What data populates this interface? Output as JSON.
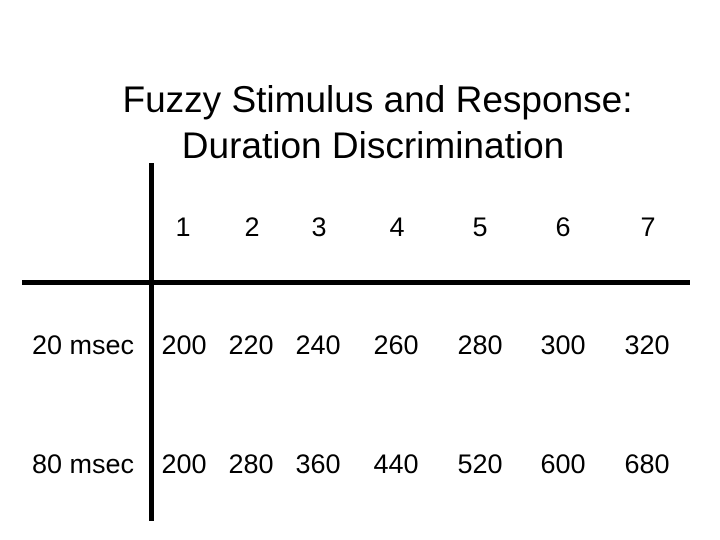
{
  "title": {
    "line1": "Fuzzy Stimulus and Response:",
    "line2": "Duration Discrimination"
  },
  "table": {
    "columns": [
      "1",
      "2",
      "3",
      "4",
      "5",
      "6",
      "7"
    ],
    "rows": [
      {
        "label": "20 msec",
        "values": [
          "200",
          "220",
          "240",
          "260",
          "280",
          "300",
          "320"
        ]
      },
      {
        "label": "80 msec",
        "values": [
          "200",
          "280",
          "360",
          "440",
          "520",
          "600",
          "680"
        ]
      }
    ]
  }
}
